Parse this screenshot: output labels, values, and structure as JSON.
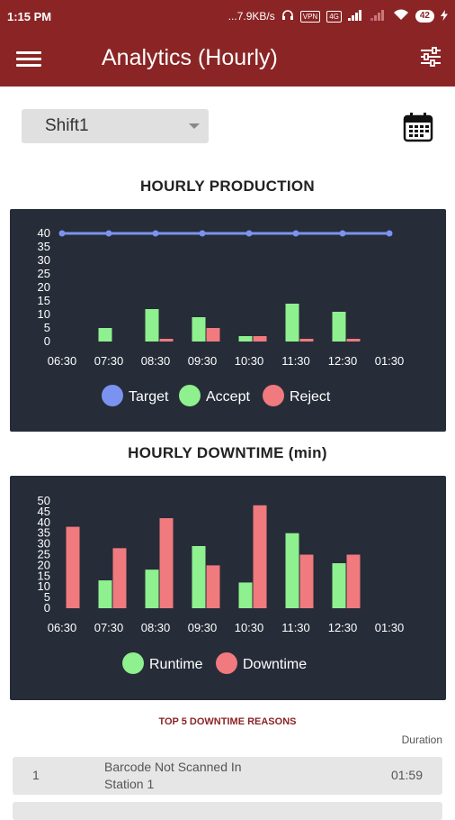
{
  "status_bar": {
    "time": "1:15 PM",
    "network_speed": "...7.9KB/s",
    "vpn": "VPN",
    "volte": "4G",
    "battery": "42"
  },
  "app_bar": {
    "title": "Analytics (Hourly)"
  },
  "shift_select": {
    "selected": "Shift1"
  },
  "production": {
    "title": "HOURLY PRODUCTION",
    "chart_data": {
      "type": "bar",
      "categories": [
        "06:30",
        "07:30",
        "08:30",
        "09:30",
        "10:30",
        "11:30",
        "12:30",
        "01:30"
      ],
      "series": [
        {
          "name": "Target",
          "type": "line",
          "color": "#7b93f0",
          "values": [
            40,
            40,
            40,
            40,
            40,
            40,
            40,
            40
          ]
        },
        {
          "name": "Accept",
          "type": "bar",
          "color": "#8ef08e",
          "values": [
            0,
            5,
            12,
            9,
            2,
            14,
            11,
            0
          ]
        },
        {
          "name": "Reject",
          "type": "bar",
          "color": "#f07a7e",
          "values": [
            0,
            0,
            1,
            5,
            2,
            1,
            1,
            0
          ]
        }
      ],
      "ylim": [
        0,
        40
      ],
      "yticks": [
        "40",
        "35",
        "30",
        "25",
        "20",
        "15",
        "10",
        "5",
        "0"
      ],
      "legend": "bottom",
      "grid": false
    }
  },
  "downtime": {
    "title": "HOURLY DOWNTIME (min)",
    "chart_data": {
      "type": "bar",
      "categories": [
        "06:30",
        "07:30",
        "08:30",
        "09:30",
        "10:30",
        "11:30",
        "12:30",
        "01:30"
      ],
      "series": [
        {
          "name": "Runtime",
          "color": "#8ef08e",
          "values": [
            0,
            13,
            18,
            29,
            12,
            35,
            21,
            0
          ]
        },
        {
          "name": "Downtime",
          "color": "#f07a7e",
          "values": [
            38,
            28,
            42,
            20,
            48,
            25,
            25,
            0
          ]
        }
      ],
      "ylim": [
        0,
        50
      ],
      "yticks": [
        "50",
        "45",
        "40",
        "35",
        "30",
        "25",
        "20",
        "15",
        "10",
        "5",
        "0"
      ],
      "legend": "bottom",
      "grid": false
    }
  },
  "reasons": {
    "title": "TOP 5 DOWNTIME REASONS",
    "duration_header": "Duration",
    "rows": [
      {
        "index": "1",
        "reason": "Barcode Not Scanned In Station 1",
        "duration": "01:59"
      }
    ]
  },
  "icons": {
    "menu": "menu-icon",
    "filter": "filter-sliders-icon",
    "calendar": "calendar-icon"
  }
}
